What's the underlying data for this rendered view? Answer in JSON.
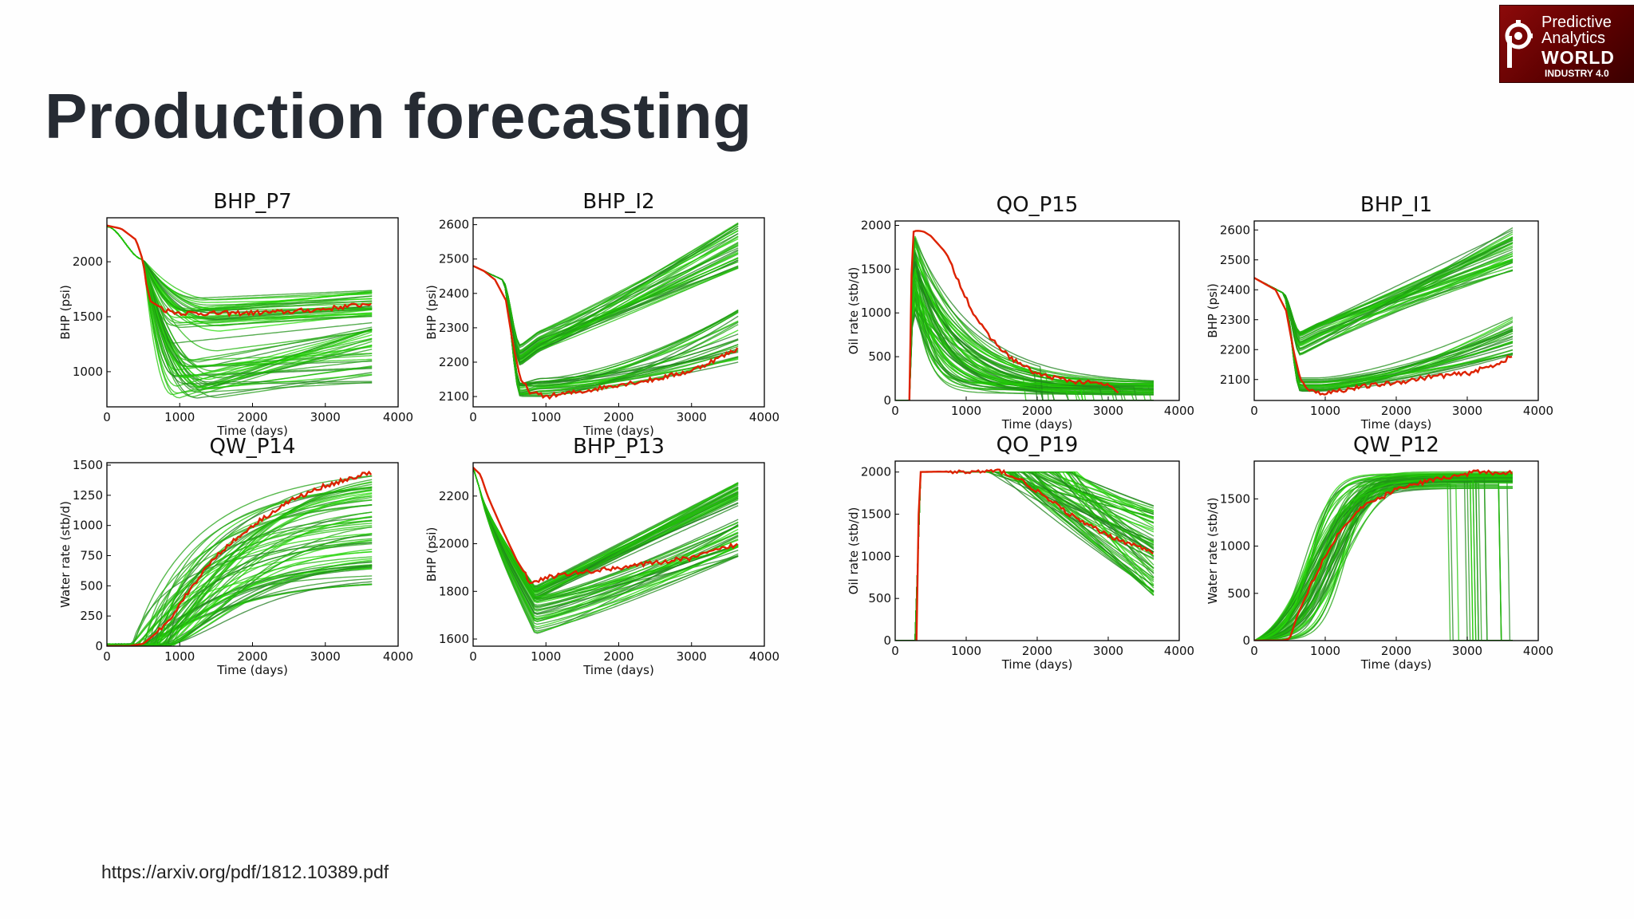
{
  "slide": {
    "title": "Production forecasting",
    "source": "https://arxiv.org/pdf/1812.10389.pdf"
  },
  "logo": {
    "line1": "Predictive",
    "line2": "Analytics",
    "line3": "WORLD",
    "line4": "INDUSTRY 4.0"
  },
  "colors": {
    "observed": "#dd2200",
    "ensemble_light": "#22e000",
    "ensemble_dark": "#1f7a1f"
  },
  "chart_data": [
    {
      "id": "bhp-p7",
      "type": "line",
      "title": "BHP_P7",
      "xlabel": "Time (days)",
      "ylabel": "BHP (psi)",
      "xlim": [
        0,
        4000
      ],
      "ylim": [
        680,
        2400
      ],
      "xticks": [
        0,
        1000,
        2000,
        3000,
        4000
      ],
      "yticks": [
        1000,
        1500,
        2000
      ],
      "observed": {
        "x": [
          0,
          200,
          400,
          500,
          540,
          600,
          800,
          1000,
          1500,
          2000,
          2500,
          3000,
          3500,
          3650
        ],
        "y": [
          2330,
          2300,
          2200,
          2000,
          1800,
          1640,
          1560,
          1535,
          1530,
          1535,
          1545,
          1570,
          1610,
          1630
        ]
      },
      "upper_band": {
        "start": 1730,
        "end": 1450,
        "max": 1740
      },
      "lower_band": {
        "min_end": 880,
        "max_end": 1500
      }
    },
    {
      "id": "bhp-i2",
      "type": "line",
      "title": "BHP_I2",
      "xlabel": "Time (days)",
      "ylabel": "BHP (psi)",
      "xlim": [
        0,
        4000
      ],
      "ylim": [
        2070,
        2620
      ],
      "xticks": [
        0,
        1000,
        2000,
        3000,
        4000
      ],
      "yticks": [
        2100,
        2200,
        2300,
        2400,
        2500,
        2600
      ],
      "observed": {
        "x": [
          0,
          150,
          300,
          450,
          550,
          650,
          800,
          1000,
          1500,
          2000,
          2500,
          3000,
          3650
        ],
        "y": [
          2480,
          2465,
          2440,
          2380,
          2250,
          2150,
          2110,
          2100,
          2115,
          2135,
          2150,
          2175,
          2240
        ]
      }
    },
    {
      "id": "qo-p15",
      "type": "line",
      "title": "QO_P15",
      "xlabel": "Time (days)",
      "ylabel": "Oil rate (stb/d)",
      "xlim": [
        0,
        4000
      ],
      "ylim": [
        0,
        2050
      ],
      "xticks": [
        0,
        1000,
        2000,
        3000,
        4000
      ],
      "yticks": [
        0,
        500,
        1000,
        1500,
        2000
      ],
      "observed": {
        "x": [
          200,
          240,
          300,
          400,
          500,
          700,
          900,
          1100,
          1300,
          1600,
          2000,
          2500,
          3000,
          3150
        ],
        "y": [
          0,
          1920,
          1940,
          1930,
          1880,
          1700,
          1350,
          1000,
          750,
          500,
          300,
          220,
          180,
          60
        ]
      }
    },
    {
      "id": "bhp-i1",
      "type": "line",
      "title": "BHP_I1",
      "xlabel": "Time (days)",
      "ylabel": "BHP (psi)",
      "xlim": [
        0,
        4000
      ],
      "ylim": [
        2030,
        2630
      ],
      "xticks": [
        0,
        1000,
        2000,
        3000,
        4000
      ],
      "yticks": [
        2100,
        2200,
        2300,
        2400,
        2500,
        2600
      ],
      "observed": {
        "x": [
          0,
          150,
          300,
          450,
          550,
          650,
          800,
          1000,
          1500,
          2000,
          2500,
          3000,
          3400,
          3650
        ],
        "y": [
          2440,
          2420,
          2400,
          2330,
          2200,
          2100,
          2060,
          2055,
          2075,
          2090,
          2110,
          2120,
          2150,
          2180
        ]
      }
    },
    {
      "id": "qw-p14",
      "type": "line",
      "title": "QW_P14",
      "xlabel": "Time (days)",
      "ylabel": "Water rate (stb/d)",
      "xlim": [
        0,
        4000
      ],
      "ylim": [
        0,
        1520
      ],
      "xticks": [
        0,
        1000,
        2000,
        3000,
        4000
      ],
      "yticks": [
        0,
        250,
        500,
        750,
        1000,
        1250,
        1500
      ],
      "observed": {
        "x": [
          0,
          300,
          500,
          700,
          900,
          1200,
          1500,
          2000,
          2500,
          3000,
          3400,
          3650
        ],
        "y": [
          0,
          0,
          20,
          120,
          260,
          520,
          750,
          1000,
          1200,
          1330,
          1400,
          1440
        ]
      }
    },
    {
      "id": "bhp-p13",
      "type": "line",
      "title": "BHP_P13",
      "xlabel": "Time (days)",
      "ylabel": "BHP (psi)",
      "xlim": [
        0,
        4000
      ],
      "ylim": [
        1570,
        2340
      ],
      "xticks": [
        0,
        1000,
        2000,
        3000,
        4000
      ],
      "yticks": [
        1600,
        1800,
        2000,
        2200
      ],
      "observed": {
        "x": [
          0,
          100,
          200,
          400,
          600,
          800,
          1000,
          1500,
          2000,
          2500,
          3000,
          3650
        ],
        "y": [
          2320,
          2290,
          2200,
          2060,
          1930,
          1830,
          1860,
          1880,
          1900,
          1920,
          1940,
          2000
        ]
      }
    },
    {
      "id": "qo-p19",
      "type": "line",
      "title": "QO_P19",
      "xlabel": "Time (days)",
      "ylabel": "Oil rate (stb/d)",
      "xlim": [
        0,
        4000
      ],
      "ylim": [
        0,
        2130
      ],
      "xticks": [
        0,
        1000,
        2000,
        3000,
        4000
      ],
      "yticks": [
        0,
        500,
        1000,
        1500,
        2000
      ],
      "observed": {
        "x": [
          300,
          340,
          600,
          1000,
          1500,
          1800,
          2200,
          2600,
          3000,
          3400,
          3650
        ],
        "y": [
          0,
          2000,
          2005,
          2000,
          2010,
          1890,
          1650,
          1420,
          1250,
          1120,
          1050
        ]
      }
    },
    {
      "id": "qw-p12",
      "type": "line",
      "title": "QW_P12",
      "xlabel": "Time (days)",
      "ylabel": "Water rate (stb/d)",
      "xlim": [
        0,
        4000
      ],
      "ylim": [
        0,
        1900
      ],
      "xticks": [
        0,
        1000,
        2000,
        3000,
        4000
      ],
      "yticks": [
        0,
        500,
        1000,
        1500
      ],
      "observed": {
        "x": [
          0,
          400,
          500,
          600,
          800,
          1000,
          1200,
          1500,
          2000,
          2500,
          3000,
          3200,
          3300,
          3350,
          3650
        ],
        "y": [
          0,
          0,
          20,
          250,
          600,
          900,
          1150,
          1400,
          1600,
          1700,
          1760,
          1800,
          1780,
          1780,
          1780
        ]
      }
    }
  ]
}
